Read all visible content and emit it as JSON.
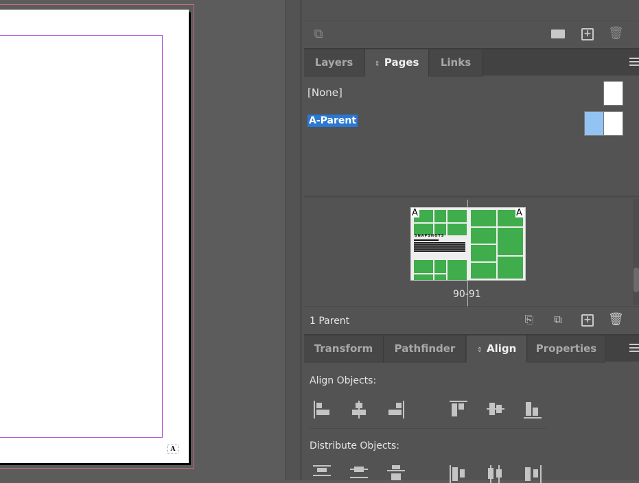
{
  "layers_toolbar": {
    "icons": [
      "place-content-icon",
      "folder-icon",
      "new-item-icon",
      "trash-icon"
    ]
  },
  "pages_panel": {
    "tabs": [
      {
        "label": "Layers",
        "active": false
      },
      {
        "label": "Pages",
        "active": true
      },
      {
        "label": "Links",
        "active": false
      }
    ],
    "parents": [
      {
        "label": "[None]",
        "selected": false
      },
      {
        "label": "A-Parent",
        "selected": true
      }
    ],
    "spread": {
      "label": "90-91",
      "left_prefix": "A",
      "right_prefix": "A",
      "thumbnail_heading": "SNAPSHOTS",
      "thumb_color": "#3fad4b"
    },
    "status": "1 Parent",
    "footer_icons": [
      "edit-page-size-icon",
      "new-page-options-icon",
      "new-page-icon",
      "delete-page-icon"
    ],
    "selection_color": "#2a78d4"
  },
  "align_panel": {
    "tabs": [
      {
        "label": "Transform",
        "active": false
      },
      {
        "label": "Pathfinder",
        "active": false
      },
      {
        "label": "Align",
        "active": true
      },
      {
        "label": "Properties",
        "active": false
      }
    ],
    "align_objects_label": "Align Objects:",
    "distribute_objects_label": "Distribute Objects:"
  },
  "document": {
    "page_prefix": "A"
  }
}
